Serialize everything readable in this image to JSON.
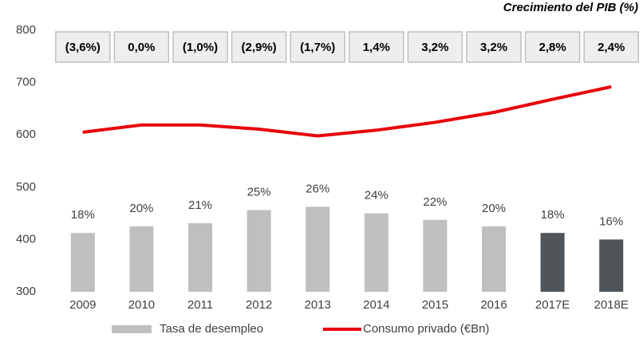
{
  "chart_data": {
    "type": "bar",
    "title": "Crecimiento del PIB (%)",
    "categories": [
      "2009",
      "2010",
      "2011",
      "2012",
      "2013",
      "2014",
      "2015",
      "2016",
      "2017E",
      "2018E"
    ],
    "ylim": [
      300,
      800
    ],
    "yticks": [
      300,
      400,
      500,
      600,
      700,
      800
    ],
    "y2lim": [
      0,
      80
    ],
    "legend": "bottom",
    "series": [
      {
        "name": "Tasa de desempleo",
        "type": "bar",
        "axis": "y2",
        "color": "#bfbfbf",
        "colors": [
          "#bfbfbf",
          "#bfbfbf",
          "#bfbfbf",
          "#bfbfbf",
          "#bfbfbf",
          "#bfbfbf",
          "#bfbfbf",
          "#bfbfbf",
          "#505559",
          "#505559"
        ],
        "values": [
          18,
          20,
          21,
          25,
          26,
          24,
          22,
          20,
          18,
          16
        ],
        "value_labels": [
          "18%",
          "20%",
          "21%",
          "25%",
          "26%",
          "24%",
          "22%",
          "20%",
          "18%",
          "16%"
        ]
      },
      {
        "name": "Consumo privado (€Bn)",
        "type": "line",
        "color": "#e8000b",
        "values": [
          605,
          619,
          619,
          611,
          598,
          609,
          624,
          643,
          668,
          692
        ]
      }
    ],
    "gdp_growth": {
      "values": [
        -3.6,
        0.0,
        -1.0,
        -2.9,
        -1.7,
        1.4,
        3.2,
        3.2,
        2.8,
        2.4
      ],
      "value_labels": [
        "(3,6%)",
        "0,0%",
        "(1,0%)",
        "(2,9%)",
        "(1,7%)",
        "1,4%",
        "3,2%",
        "3,2%",
        "2,8%",
        "2,4%"
      ]
    }
  }
}
